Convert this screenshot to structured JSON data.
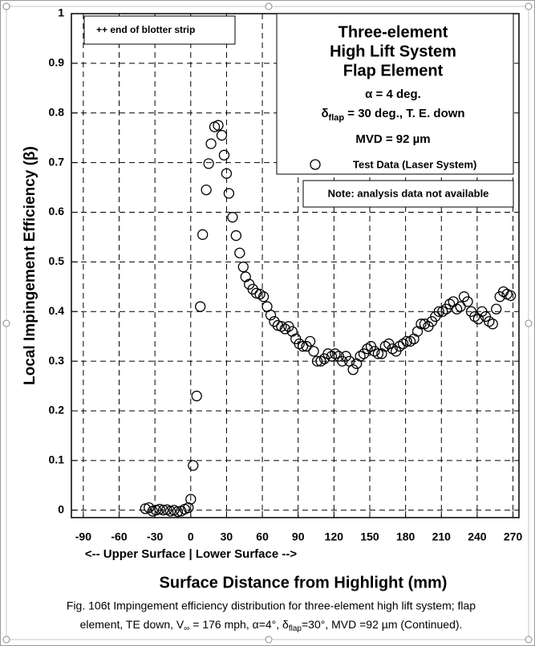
{
  "chart_data": {
    "type": "scatter",
    "x_label": "Surface Distance from Highlight (mm)",
    "x_sublabel": "<-- Upper Surface  |  Lower Surface -->",
    "y_label": "Local Impingement Efficiency (β)",
    "annotation": "++ end of blotter strip",
    "legend_title": [
      "Three-element",
      "High Lift System",
      "Flap Element"
    ],
    "conditions": {
      "alpha": "α = 4 deg.",
      "delta_symbol": "δ",
      "delta_sub": "flap",
      "delta_text": " = 30 deg., T. E. down",
      "mvd": "MVD = 92 µm"
    },
    "note": "Note: analysis data not available",
    "caption": [
      "Fig. 106t Impingement efficiency distribution for three-element high lift system;  flap",
      "element, TE down, V",
      "∞",
      " = 176 mph, α=4°, δ",
      "flap",
      "=30°,  MVD =92 µm (Continued)."
    ],
    "xlim": [
      -100,
      275
    ],
    "ylim": [
      -0.015,
      1
    ],
    "xticks": [
      -90,
      -60,
      -30,
      0,
      30,
      60,
      90,
      120,
      150,
      180,
      210,
      240,
      270
    ],
    "yticks": [
      0,
      0.1,
      0.2,
      0.3,
      0.4,
      0.5,
      0.6,
      0.7,
      0.8,
      0.9,
      1
    ],
    "grid": true,
    "series": [
      {
        "name": "Test Data (Laser System)",
        "color": "#000000",
        "x": [
          -38,
          -35,
          -32,
          -29,
          -26,
          -23,
          -20,
          -17,
          -14,
          -11,
          -8,
          -5,
          -2,
          0,
          2,
          5,
          8,
          10,
          13,
          15,
          17,
          20,
          23,
          26,
          28,
          30,
          32,
          35,
          38,
          41,
          44,
          46,
          49,
          52,
          55,
          58,
          61,
          64,
          67,
          70,
          73,
          76,
          79,
          82,
          85,
          88,
          91,
          94,
          97,
          100,
          103,
          106,
          109,
          112,
          115,
          118,
          121,
          124,
          127,
          130,
          133,
          136,
          139,
          142,
          145,
          148,
          151,
          154,
          157,
          160,
          163,
          166,
          169,
          172,
          175,
          178,
          181,
          184,
          187,
          190,
          193,
          196,
          199,
          202,
          205,
          208,
          211,
          214,
          217,
          220,
          223,
          226,
          229,
          232,
          235,
          238,
          241,
          244,
          247,
          250,
          253,
          256,
          259,
          262,
          265,
          268
        ],
        "values": [
          0.003,
          0.005,
          -0.002,
          0,
          0.002,
          0,
          0.001,
          -0.002,
          0,
          -0.003,
          -0.002,
          0.002,
          0.005,
          0.022,
          0.09,
          0.23,
          0.41,
          0.555,
          0.645,
          0.698,
          0.738,
          0.772,
          0.775,
          0.755,
          0.715,
          0.678,
          0.638,
          0.59,
          0.553,
          0.518,
          0.49,
          0.47,
          0.455,
          0.445,
          0.437,
          0.435,
          0.43,
          0.41,
          0.393,
          0.38,
          0.372,
          0.37,
          0.365,
          0.37,
          0.36,
          0.345,
          0.335,
          0.33,
          0.33,
          0.34,
          0.32,
          0.3,
          0.3,
          0.305,
          0.315,
          0.31,
          0.315,
          0.31,
          0.3,
          0.31,
          0.3,
          0.283,
          0.295,
          0.31,
          0.315,
          0.325,
          0.33,
          0.32,
          0.315,
          0.315,
          0.33,
          0.335,
          0.325,
          0.32,
          0.33,
          0.335,
          0.34,
          0.34,
          0.345,
          0.36,
          0.375,
          0.375,
          0.37,
          0.38,
          0.39,
          0.4,
          0.4,
          0.405,
          0.415,
          0.42,
          0.405,
          0.41,
          0.43,
          0.42,
          0.4,
          0.39,
          0.385,
          0.4,
          0.39,
          0.38,
          0.375,
          0.405,
          0.43,
          0.44,
          0.435,
          0.432
        ]
      }
    ]
  }
}
